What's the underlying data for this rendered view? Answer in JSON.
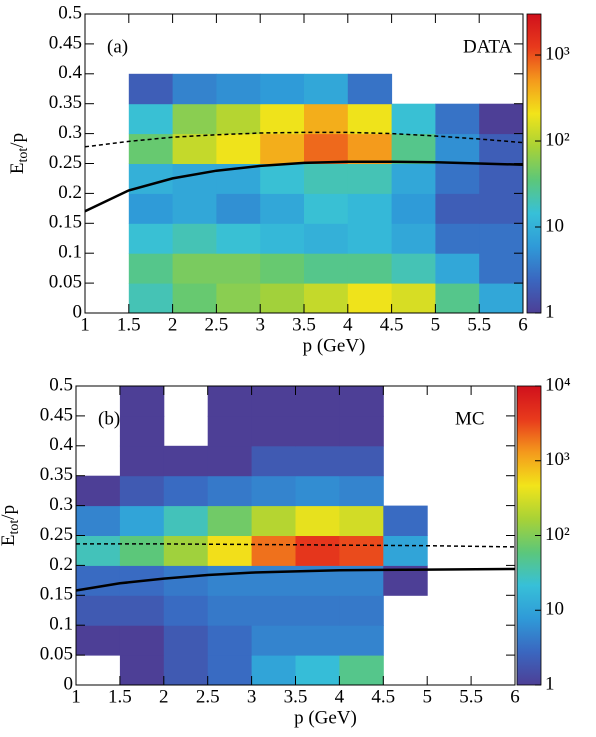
{
  "chart_data": [
    {
      "type": "heatmap",
      "panel_label": "(a)",
      "tag": "DATA",
      "x_label": "p (GeV)",
      "y_label_parts": [
        "E",
        "tot",
        "/p"
      ],
      "xlim": [
        1,
        6
      ],
      "ylim": [
        0,
        0.5
      ],
      "xticks": [
        1,
        1.5,
        2,
        2.5,
        3,
        3.5,
        4,
        4.5,
        5,
        5.5,
        6
      ],
      "yticks": [
        0,
        0.05,
        0.1,
        0.15,
        0.2,
        0.25,
        0.3,
        0.35,
        0.4,
        0.45,
        0.5
      ],
      "xbins": [
        1,
        1.5,
        2,
        2.5,
        3,
        3.5,
        4,
        4.5,
        5,
        5.5,
        6
      ],
      "ybins": [
        0,
        0.05,
        0.1,
        0.15,
        0.2,
        0.25,
        0.3,
        0.35,
        0.4,
        0.45,
        0.5
      ],
      "z": [
        [
          0,
          20,
          40,
          60,
          80,
          120,
          200,
          150,
          30,
          8
        ],
        [
          0,
          30,
          50,
          50,
          40,
          30,
          30,
          20,
          8,
          3
        ],
        [
          0,
          15,
          20,
          15,
          12,
          10,
          12,
          8,
          3,
          3
        ],
        [
          0,
          6,
          8,
          5,
          8,
          15,
          12,
          6,
          2,
          2
        ],
        [
          0,
          10,
          8,
          8,
          15,
          20,
          20,
          8,
          3,
          2
        ],
        [
          0,
          40,
          120,
          200,
          400,
          800,
          500,
          30,
          5,
          2
        ],
        [
          0,
          15,
          60,
          100,
          200,
          400,
          200,
          15,
          3,
          1
        ],
        [
          0,
          2,
          4,
          5,
          6,
          8,
          3,
          0,
          0,
          0
        ],
        [
          0,
          0,
          0,
          0,
          0,
          0,
          0,
          0,
          0,
          0
        ],
        [
          0,
          0,
          0,
          0,
          0,
          0,
          0,
          0,
          0,
          0
        ]
      ],
      "zlim": [
        1,
        3000
      ],
      "zscale": "log",
      "zticks": [
        1,
        10,
        {
          "value": 100,
          "label": "10²"
        },
        {
          "value": 1000,
          "label": "10³"
        }
      ],
      "colormap": [
        "#4d3f96",
        "#3a67c0",
        "#2f9ad8",
        "#37c0d8",
        "#5cc77a",
        "#a8d236",
        "#f2e41a",
        "#f49a1c",
        "#e83a1c",
        "#d0101c"
      ],
      "series": [
        {
          "style": "dashed",
          "color": "#000000",
          "x": [
            1,
            1.5,
            2,
            2.5,
            3,
            3.5,
            4,
            4.5,
            5,
            5.5,
            6
          ],
          "values": [
            0.278,
            0.287,
            0.294,
            0.298,
            0.301,
            0.302,
            0.302,
            0.3,
            0.296,
            0.291,
            0.285
          ]
        },
        {
          "style": "solid",
          "color": "#000000",
          "x": [
            1,
            1.5,
            2,
            2.5,
            3,
            3.5,
            4,
            4.5,
            5,
            5.5,
            6
          ],
          "values": [
            0.17,
            0.205,
            0.225,
            0.238,
            0.246,
            0.251,
            0.253,
            0.253,
            0.252,
            0.25,
            0.248
          ]
        }
      ]
    },
    {
      "type": "heatmap",
      "panel_label": "(b)",
      "tag": "MC",
      "x_label": "p (GeV)",
      "y_label_parts": [
        "E",
        "tot",
        "/p"
      ],
      "xlim": [
        1,
        6
      ],
      "ylim": [
        0,
        0.5
      ],
      "xticks": [
        1,
        1.5,
        2,
        2.5,
        3,
        3.5,
        4,
        4.5,
        5,
        5.5,
        6
      ],
      "yticks": [
        0,
        0.05,
        0.1,
        0.15,
        0.2,
        0.25,
        0.3,
        0.35,
        0.4,
        0.45,
        0.5
      ],
      "xbins": [
        1,
        1.5,
        2,
        2.5,
        3,
        3.5,
        4,
        4.5,
        5,
        5.5,
        6
      ],
      "ybins": [
        0,
        0.05,
        0.1,
        0.15,
        0.2,
        0.25,
        0.3,
        0.35,
        0.4,
        0.45,
        0.5
      ],
      "z": [
        [
          0,
          1,
          2,
          3,
          10,
          20,
          50,
          0,
          0,
          0
        ],
        [
          1,
          1,
          2,
          3,
          5,
          5,
          5,
          0,
          0,
          0
        ],
        [
          2,
          2,
          3,
          4,
          4,
          4,
          4,
          0,
          0,
          0
        ],
        [
          3,
          3,
          4,
          5,
          5,
          5,
          5,
          1,
          0,
          0
        ],
        [
          30,
          60,
          150,
          500,
          2000,
          4000,
          3000,
          10,
          0,
          0
        ],
        [
          5,
          10,
          30,
          80,
          200,
          400,
          300,
          3,
          0,
          0
        ],
        [
          1,
          2,
          3,
          4,
          5,
          6,
          5,
          0,
          0,
          0
        ],
        [
          0,
          1,
          1,
          1,
          2,
          2,
          2,
          0,
          0,
          0
        ],
        [
          0,
          1,
          0,
          1,
          1,
          1,
          1,
          0,
          0,
          0
        ],
        [
          0,
          1,
          0,
          1,
          1,
          1,
          1,
          0,
          0,
          0
        ]
      ],
      "zlim": [
        1,
        10000
      ],
      "zscale": "log",
      "zticks": [
        1,
        10,
        {
          "value": 100,
          "label": "10²"
        },
        {
          "value": 1000,
          "label": "10³"
        },
        {
          "value": 10000,
          "label": "10⁴"
        }
      ],
      "colormap": [
        "#4d3f96",
        "#3a67c0",
        "#2f9ad8",
        "#37c0d8",
        "#5cc77a",
        "#a8d236",
        "#f2e41a",
        "#f49a1c",
        "#e83a1c",
        "#d0101c"
      ],
      "series": [
        {
          "style": "dashed",
          "color": "#000000",
          "x": [
            1,
            2,
            3,
            4,
            5,
            6
          ],
          "values": [
            0.236,
            0.236,
            0.235,
            0.234,
            0.233,
            0.231
          ]
        },
        {
          "style": "solid",
          "color": "#000000",
          "x": [
            1,
            1.5,
            2,
            2.5,
            3,
            3.5,
            4,
            5,
            6
          ],
          "values": [
            0.158,
            0.17,
            0.178,
            0.184,
            0.188,
            0.19,
            0.192,
            0.193,
            0.194
          ]
        }
      ]
    }
  ]
}
